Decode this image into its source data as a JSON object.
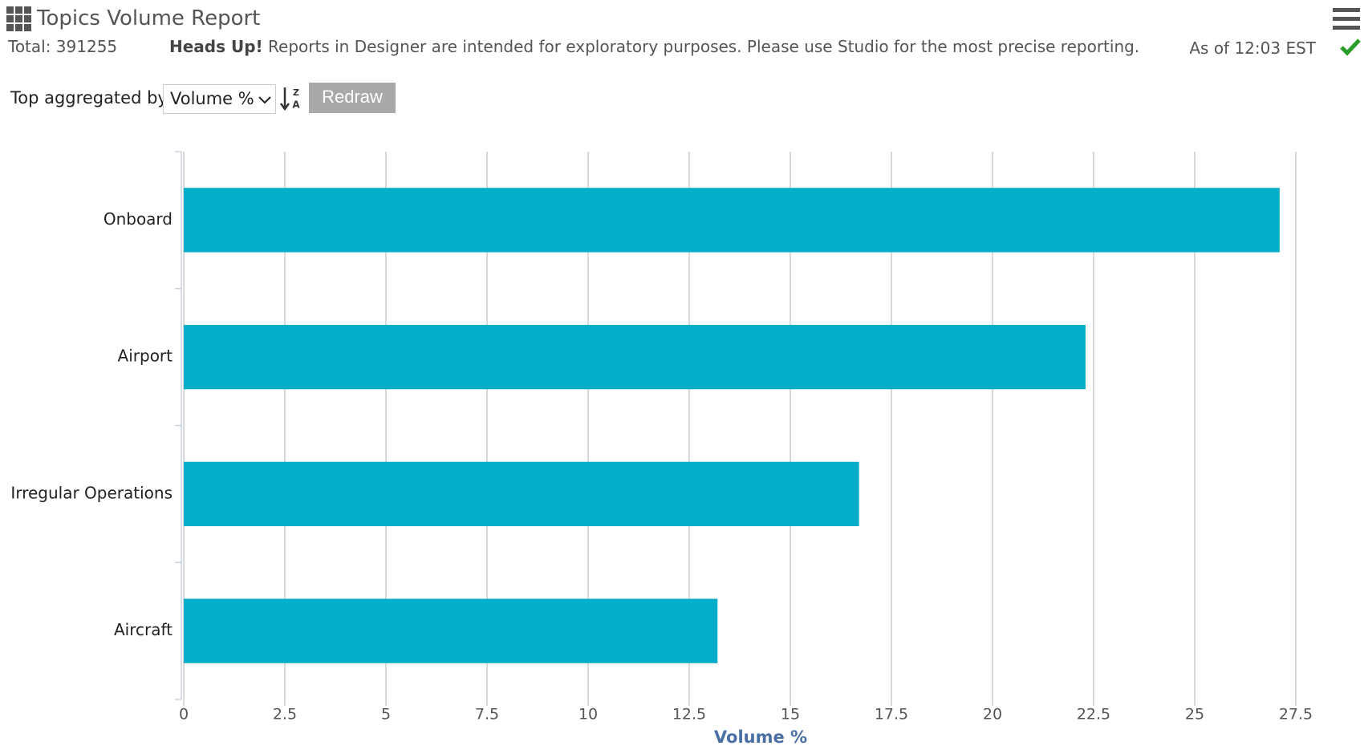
{
  "header": {
    "title": "Topics Volume Report",
    "total": "Total: 391255",
    "notice_bold": "Heads Up!",
    "notice": "Reports in Designer are intended for exploratory purposes. Please use Studio for the most precise reporting.",
    "as_of": "As of 12:03 EST"
  },
  "controls": {
    "label": "Top aggregated by",
    "select": "Volume %",
    "button": "Redraw"
  },
  "chart_data": {
    "type": "bar",
    "orientation": "horizontal",
    "categories": [
      "Onboard",
      "Airport",
      "Irregular Operations",
      "Aircraft"
    ],
    "values": [
      27.1,
      22.3,
      16.7,
      13.2
    ],
    "color": "#04adc8",
    "xlabel": "Volume %",
    "xlim": [
      0,
      27.5
    ],
    "xticks": [
      0,
      2.5,
      5,
      7.5,
      10,
      12.5,
      15,
      17.5,
      20,
      22.5,
      25,
      27.5
    ],
    "grid": true
  }
}
